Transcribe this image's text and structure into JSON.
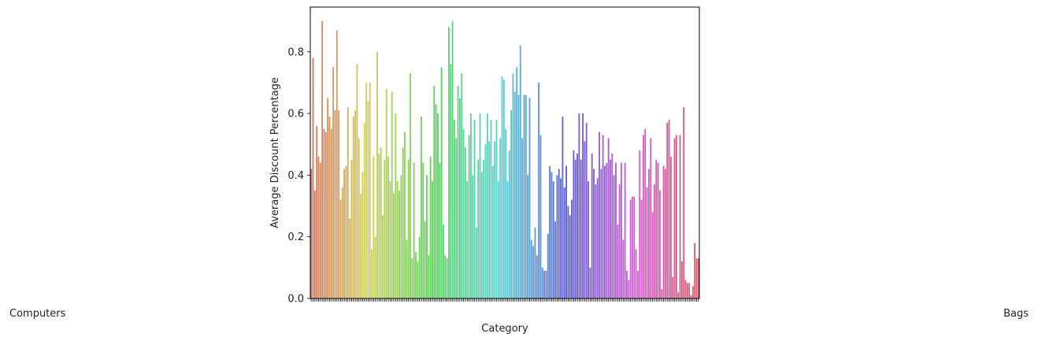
{
  "chart_data": {
    "type": "bar",
    "title": "",
    "xlabel": "Category",
    "ylabel": "Average Discount Percentage",
    "ylim": [
      0,
      0.945
    ],
    "yticks": [
      0.0,
      0.2,
      0.4,
      0.6,
      0.8
    ],
    "ytick_labels": [
      "0.0",
      "0.2",
      "0.4",
      "0.6",
      "0.8"
    ],
    "grid": false,
    "legend": "none",
    "x_tick_labels_note": "tick labels overlap and are not individually legible",
    "x_first_label": "Computers",
    "x_last_label": "Bags",
    "values": [
      0.42,
      0.78,
      0.35,
      0.56,
      0.46,
      0.44,
      0.9,
      0.55,
      0.54,
      0.65,
      0.59,
      0.55,
      0.75,
      0.61,
      0.87,
      0.61,
      0.32,
      0.36,
      0.42,
      0.43,
      0.62,
      0.26,
      0.45,
      0.59,
      0.61,
      0.76,
      0.52,
      0.34,
      0.41,
      0.57,
      0.7,
      0.64,
      0.7,
      0.16,
      0.46,
      0.2,
      0.8,
      0.47,
      0.49,
      0.27,
      0.45,
      0.68,
      0.46,
      0.38,
      0.67,
      0.34,
      0.6,
      0.38,
      0.35,
      0.4,
      0.49,
      0.54,
      0.19,
      0.45,
      0.73,
      0.13,
      0.44,
      0.15,
      0.12,
      0.2,
      0.59,
      0.44,
      0.25,
      0.4,
      0.14,
      0.46,
      0.38,
      0.69,
      0.63,
      0.6,
      0.44,
      0.75,
      0.24,
      0.14,
      0.13,
      0.88,
      0.76,
      0.9,
      0.58,
      0.52,
      0.69,
      0.65,
      0.73,
      0.55,
      0.49,
      0.38,
      0.53,
      0.6,
      0.4,
      0.58,
      0.23,
      0.45,
      0.6,
      0.41,
      0.45,
      0.5,
      0.6,
      0.51,
      0.58,
      0.43,
      0.51,
      0.58,
      0.38,
      0.52,
      0.72,
      0.71,
      0.55,
      0.38,
      0.48,
      0.61,
      0.73,
      0.67,
      0.75,
      0.66,
      0.82,
      0.52,
      0.66,
      0.66,
      0.4,
      0.65,
      0.19,
      0.17,
      0.23,
      0.14,
      0.7,
      0.53,
      0.1,
      0.09,
      0.09,
      0.21,
      0.43,
      0.41,
      0.38,
      0.25,
      0.4,
      0.42,
      0.39,
      0.59,
      0.36,
      0.43,
      0.3,
      0.27,
      0.32,
      0.48,
      0.45,
      0.47,
      0.6,
      0.45,
      0.6,
      0.51,
      0.57,
      0.38,
      0.1,
      0.47,
      0.42,
      0.37,
      0.39,
      0.54,
      0.42,
      0.53,
      0.43,
      0.44,
      0.52,
      0.45,
      0.47,
      0.4,
      0.44,
      0.24,
      0.37,
      0.44,
      0.19,
      0.44,
      0.09,
      0.06,
      0.32,
      0.33,
      0.33,
      0.16,
      0.09,
      0.48,
      0.32,
      0.53,
      0.55,
      0.36,
      0.42,
      0.52,
      0.28,
      0.37,
      0.45,
      0.44,
      0.35,
      0.03,
      0.43,
      0.42,
      0.57,
      0.58,
      0.46,
      0.07,
      0.52,
      0.53,
      0.02,
      0.53,
      0.12,
      0.62,
      0.06,
      0.05,
      0.05,
      0.01,
      0.04,
      0.18,
      0.13,
      0.13
    ]
  }
}
